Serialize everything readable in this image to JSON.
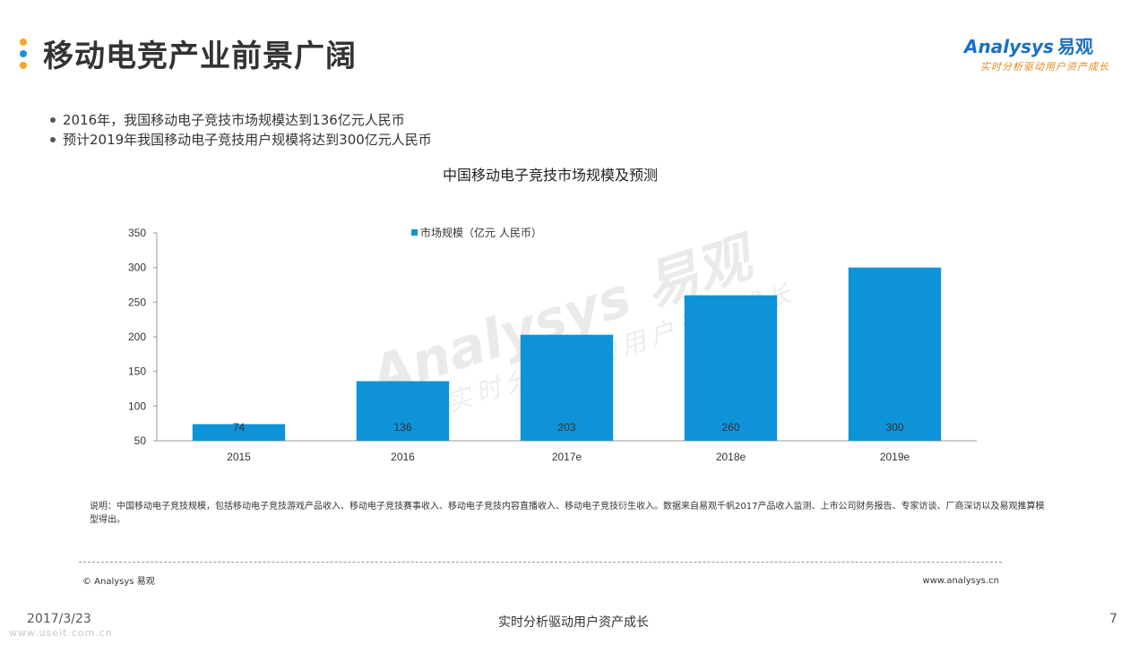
{
  "page": {
    "title": "移动电竞产业前景广阔",
    "title_dot_colors": [
      "#f5a623",
      "#1d8fd8",
      "#f5a623"
    ]
  },
  "logo": {
    "brand": "Analysys",
    "brand_cn": "易观",
    "tagline": "实时分析驱动用户资产成长"
  },
  "bullets": [
    "2016年，我国移动电子竞技市场规模达到136亿元人民币",
    "预计2019年我国移动电子竞技用户规模将达到300亿元人民币"
  ],
  "chart_data": {
    "type": "bar",
    "title": "中国移动电子竞技市场规模及预测",
    "categories": [
      "2015",
      "2016",
      "2017e",
      "2018e",
      "2019e"
    ],
    "series": [
      {
        "name": "市场规模（亿元 人民币）",
        "values": [
          74,
          136,
          203,
          260,
          300
        ],
        "color": "#0f93d8"
      }
    ],
    "data_labels": [
      "74",
      "136",
      "203",
      "260",
      "300"
    ],
    "ylim": [
      50,
      350
    ],
    "yticks": [
      50,
      100,
      150,
      200,
      250,
      300,
      350
    ],
    "ytick_labels": [
      "50",
      "100",
      "150",
      "200",
      "250",
      "300",
      "350"
    ],
    "legend_position": "top",
    "grid": false
  },
  "watermark": {
    "main": "Analysys 易观",
    "sub": "实时分析驱动用户资产成长"
  },
  "note": "说明：中国移动电子竞技规模，包括移动电子竞技游戏产品收入、移动电子竞技赛事收入、移动电子竞技内容直播收入、移动电子竞技衍生收入。数据来自易观千帆2017产品收入监测、上市公司财务报告、专家访谈、厂商深访以及易观推算模型得出。",
  "footer": {
    "copyright": "© Analysys 易观",
    "website": "www.analysys.cn",
    "date": "2017/3/23",
    "slogan": "实时分析驱动用户资产成长",
    "page_number": "7",
    "source_watermark": "www.useit.com.cn"
  }
}
